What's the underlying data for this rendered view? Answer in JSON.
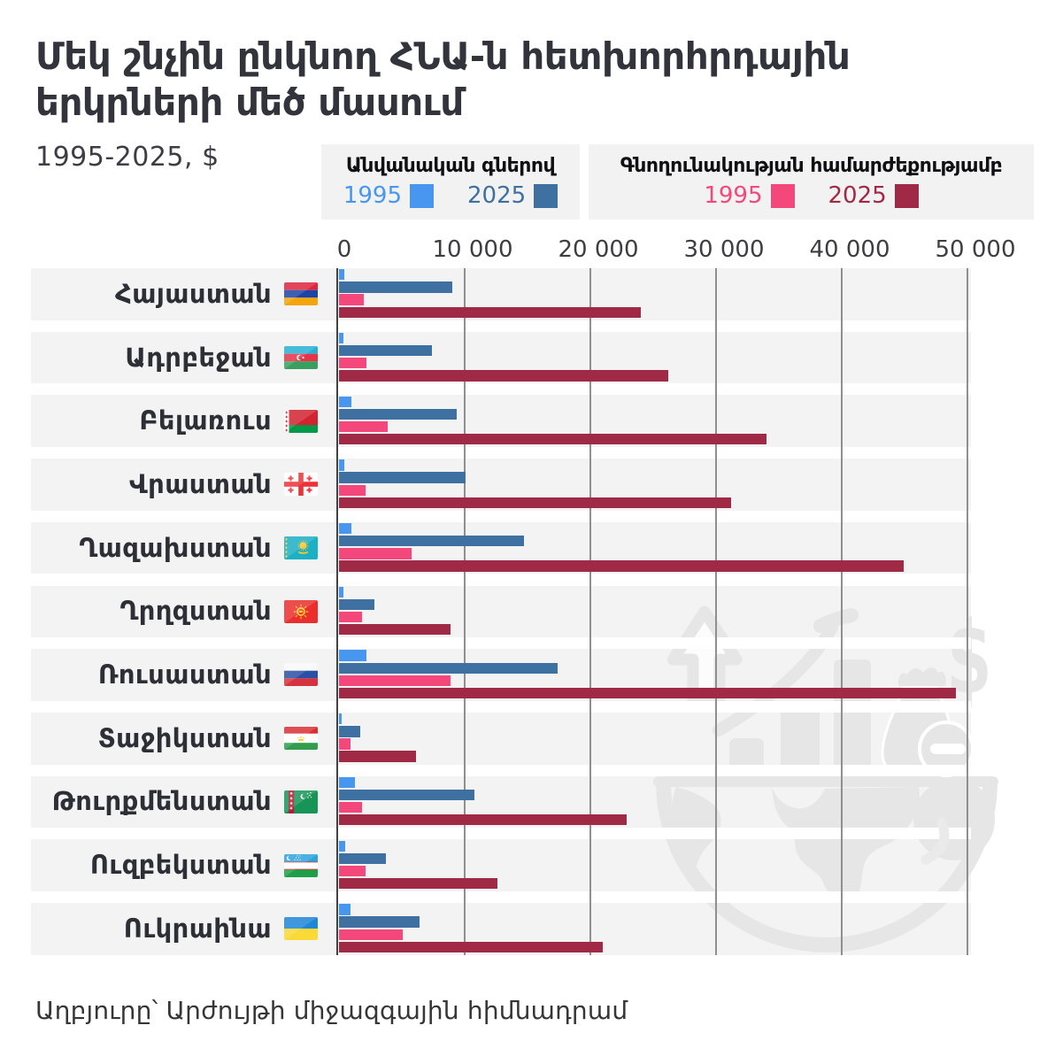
{
  "header": {
    "title_line1": "Մեկ շնչին ընկնող ՀՆԱ-ն հետխորհրդային",
    "title_line2": "երկրների մեծ մասում",
    "subtitle": "1995-2025,  $"
  },
  "legend": {
    "nominal": {
      "title": "Անվանական գներով",
      "items": [
        {
          "label": "1995",
          "color": "#4797f0"
        },
        {
          "label": "2025",
          "color": "#3e70a1"
        }
      ]
    },
    "ppp": {
      "title": "Գնողունակության համարժեքությամբ",
      "items": [
        {
          "label": "1995",
          "color": "#f4477c"
        },
        {
          "label": "2025",
          "color": "#a02945"
        }
      ]
    }
  },
  "source": "Աղբյուրը՝ Արժույթի միջազգային հիմնադրամ",
  "colors": {
    "nominal_1995": "#4797f0",
    "nominal_2025": "#3e70a1",
    "ppp_1995": "#f4477c",
    "ppp_2025": "#a02945",
    "row_band": "#f3f3f3",
    "axis_line": "#3a3a3a",
    "gridline": "#a2a2a2",
    "title_text": "#33333b",
    "watermark": "#e6e6e6"
  },
  "chart_data": {
    "type": "bar",
    "orientation": "horizontal",
    "title": "Մեկ շնչին ընկնող ՀՆԱ-ն հետխորհրդային երկրների մեծ մասում",
    "subtitle": "1995-2025, $",
    "xlabel": "",
    "ylabel": "",
    "xlim": [
      0,
      50500
    ],
    "x_ticks": [
      "0",
      "10 000",
      "20 000",
      "30 000",
      "40 000",
      "50 000"
    ],
    "x_tick_values": [
      0,
      10000,
      20000,
      30000,
      40000,
      50000
    ],
    "grid": true,
    "legend_position": "top",
    "series_names": [
      "1995 անվանական",
      "2025 անվանական",
      "1995 ԳՀ",
      "2025 ԳՀ"
    ],
    "series_colors": [
      "#4797f0",
      "#3e70a1",
      "#f4477c",
      "#a02945"
    ],
    "rows": [
      {
        "country": "Հայաստան",
        "flag": "am",
        "values": [
          400,
          9000,
          2000,
          24000
        ]
      },
      {
        "country": "Ադրբեջան",
        "flag": "az",
        "values": [
          350,
          7400,
          2200,
          26200
        ]
      },
      {
        "country": "Բելառուս",
        "flag": "by",
        "values": [
          1000,
          9400,
          3900,
          34000
        ]
      },
      {
        "country": "Վրաստան",
        "flag": "ge",
        "values": [
          450,
          10100,
          2100,
          31200
        ]
      },
      {
        "country": "Ղազախստան",
        "flag": "kz",
        "values": [
          1000,
          14700,
          5800,
          44900
        ]
      },
      {
        "country": "Ղրղզստան",
        "flag": "kg",
        "values": [
          350,
          2800,
          1800,
          8900
        ]
      },
      {
        "country": "Ռուսաստան",
        "flag": "ru",
        "values": [
          2200,
          17400,
          8900,
          49100
        ]
      },
      {
        "country": "Տաջիկստան",
        "flag": "tj",
        "values": [
          220,
          1700,
          950,
          6100
        ]
      },
      {
        "country": "Թուրքմենստան",
        "flag": "tm",
        "values": [
          1300,
          10800,
          1800,
          22900
        ]
      },
      {
        "country": "Ուզբեկստան",
        "flag": "uz",
        "values": [
          500,
          3700,
          2100,
          12600
        ]
      },
      {
        "country": "Ուկրաինա",
        "flag": "ua",
        "values": [
          950,
          6400,
          5100,
          21000
        ]
      }
    ]
  }
}
